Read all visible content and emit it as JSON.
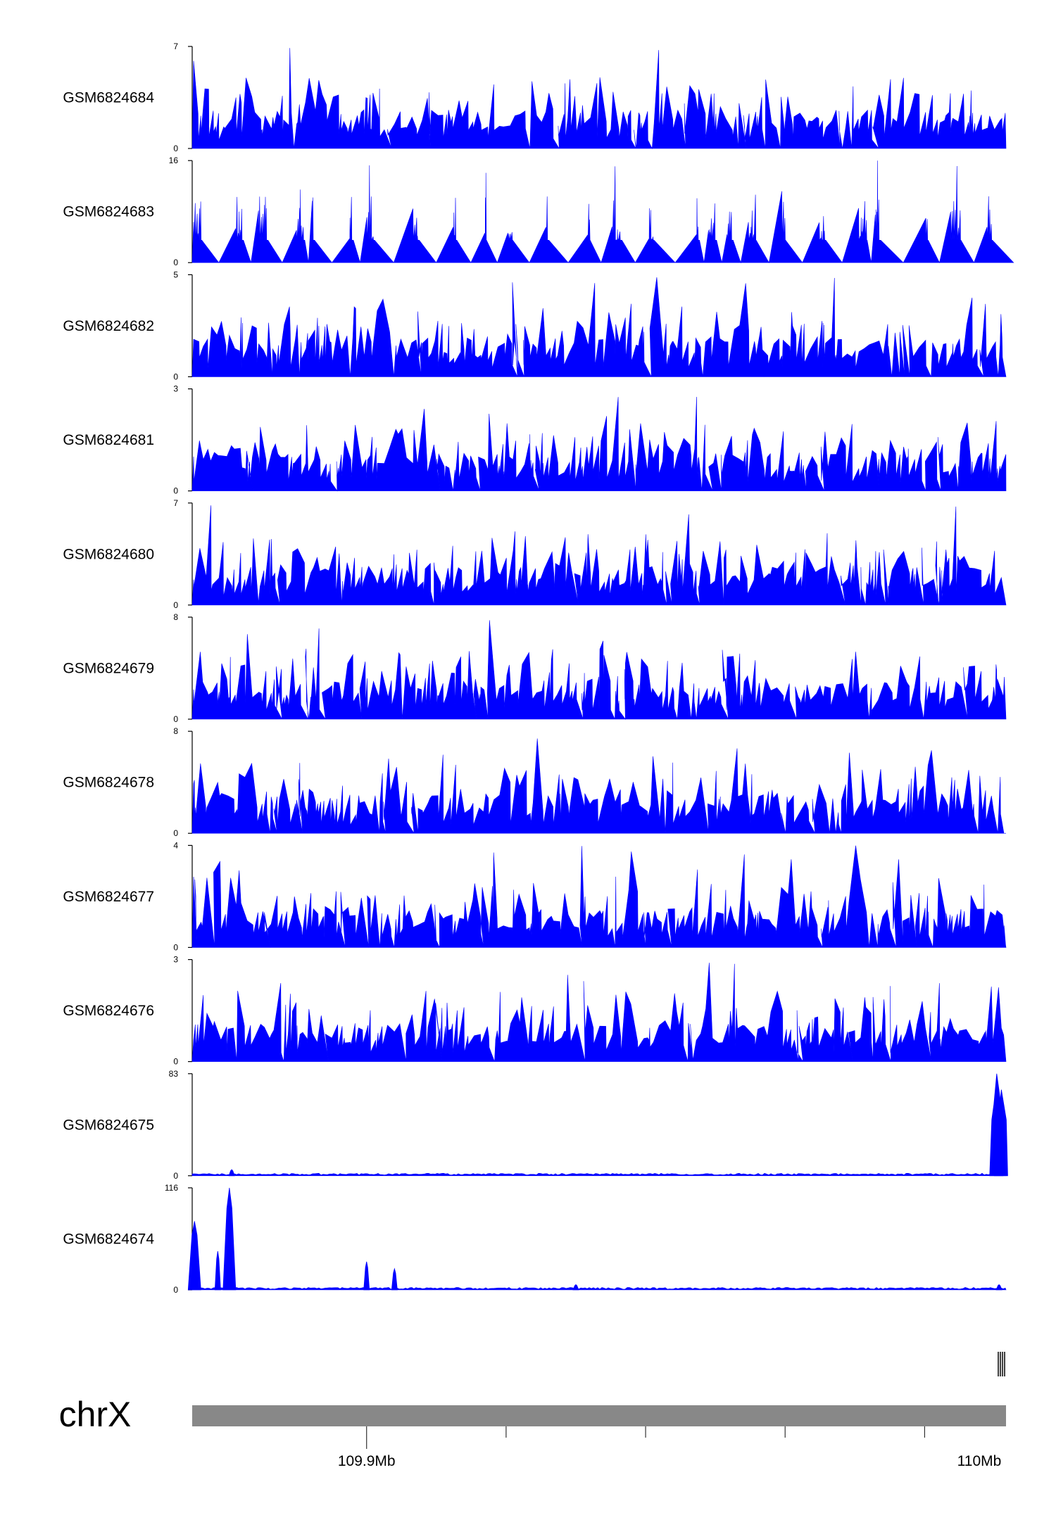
{
  "chart_data": {
    "type": "area",
    "title": "",
    "chromosome": "chrX",
    "colors": {
      "signal": "#0000ff",
      "ideogram": "#888888",
      "axis": "#000000"
    },
    "genome_axis": {
      "range_mb": [
        109.8625,
        110.0375
      ],
      "tick_positions_mb": [
        109.9,
        109.93,
        109.96,
        109.99,
        110.02,
        110.05
      ],
      "tick_labels": [
        {
          "pos_mb": 109.9,
          "label": "109.9Mb"
        },
        {
          "pos_mb": 110.05,
          "label": "110Mb"
        }
      ]
    },
    "tracks": [
      {
        "name": "GSM6824684",
        "ymax": 7,
        "ymin": 0,
        "kind": "dense"
      },
      {
        "name": "GSM6824683",
        "ymax": 16,
        "ymin": 0,
        "kind": "sparse"
      },
      {
        "name": "GSM6824682",
        "ymax": 5,
        "ymin": 0,
        "kind": "dense"
      },
      {
        "name": "GSM6824681",
        "ymax": 3,
        "ymin": 0,
        "kind": "dense"
      },
      {
        "name": "GSM6824680",
        "ymax": 7,
        "ymin": 0,
        "kind": "dense"
      },
      {
        "name": "GSM6824679",
        "ymax": 8,
        "ymin": 0,
        "kind": "dense"
      },
      {
        "name": "GSM6824678",
        "ymax": 8,
        "ymin": 0,
        "kind": "dense"
      },
      {
        "name": "GSM6824677",
        "ymax": 4,
        "ymin": 0,
        "kind": "dense"
      },
      {
        "name": "GSM6824676",
        "ymax": 3,
        "ymin": 0,
        "kind": "dense"
      },
      {
        "name": "GSM6824675",
        "ymax": 83,
        "ymin": 0,
        "kind": "peak",
        "peaks": [
          {
            "pos_mb": 109.871,
            "height": 5
          },
          {
            "pos_mb": 110.0355,
            "height": 83
          },
          {
            "pos_mb": 110.0365,
            "height": 70
          }
        ]
      },
      {
        "name": "GSM6824674",
        "ymax": 116,
        "ymin": 0,
        "kind": "peak",
        "peaks": [
          {
            "pos_mb": 109.863,
            "height": 78
          },
          {
            "pos_mb": 109.868,
            "height": 44
          },
          {
            "pos_mb": 109.8705,
            "height": 116
          },
          {
            "pos_mb": 109.9,
            "height": 32
          },
          {
            "pos_mb": 109.906,
            "height": 24
          },
          {
            "pos_mb": 109.945,
            "height": 6
          },
          {
            "pos_mb": 110.036,
            "height": 6
          }
        ]
      }
    ]
  }
}
